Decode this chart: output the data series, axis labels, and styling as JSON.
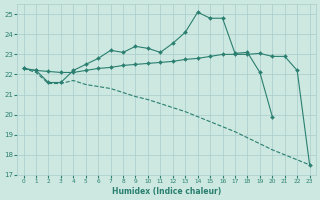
{
  "xlabel": "Humidex (Indice chaleur)",
  "x": [
    0,
    1,
    2,
    3,
    4,
    5,
    6,
    7,
    8,
    9,
    10,
    11,
    12,
    13,
    14,
    15,
    16,
    17,
    18,
    19,
    20,
    21,
    22,
    23
  ],
  "line_top": [
    22.3,
    22.2,
    21.6,
    21.6,
    22.2,
    22.5,
    22.8,
    23.2,
    23.1,
    23.4,
    23.3,
    23.1,
    23.55,
    24.1,
    25.1,
    24.8,
    24.8,
    23.05,
    23.1,
    22.1,
    19.9,
    null,
    null,
    null
  ],
  "line_mid": [
    22.3,
    22.2,
    22.15,
    22.1,
    22.1,
    22.2,
    22.3,
    22.35,
    22.45,
    22.5,
    22.55,
    22.6,
    22.65,
    22.75,
    22.8,
    22.9,
    23.0,
    23.0,
    23.0,
    23.05,
    22.9,
    22.9,
    22.2,
    17.5
  ],
  "line_bot": [
    22.3,
    22.1,
    21.55,
    21.55,
    21.7,
    21.5,
    21.4,
    21.3,
    21.1,
    20.9,
    20.75,
    20.55,
    20.35,
    20.15,
    19.9,
    19.65,
    19.4,
    19.15,
    18.85,
    18.55,
    18.25,
    18.0,
    17.75,
    17.5
  ],
  "line_color": "#2a7f70",
  "bg_color": "#cce8e0",
  "grid_color": "#aacccc",
  "ylim_min": 17,
  "ylim_max": 25.5,
  "yticks": [
    17,
    18,
    19,
    20,
    21,
    22,
    23,
    24,
    25
  ],
  "xticks": [
    0,
    1,
    2,
    3,
    4,
    5,
    6,
    7,
    8,
    9,
    10,
    11,
    12,
    13,
    14,
    15,
    16,
    17,
    18,
    19,
    20,
    21,
    22,
    23
  ],
  "xlim_min": -0.5,
  "xlim_max": 23.5
}
